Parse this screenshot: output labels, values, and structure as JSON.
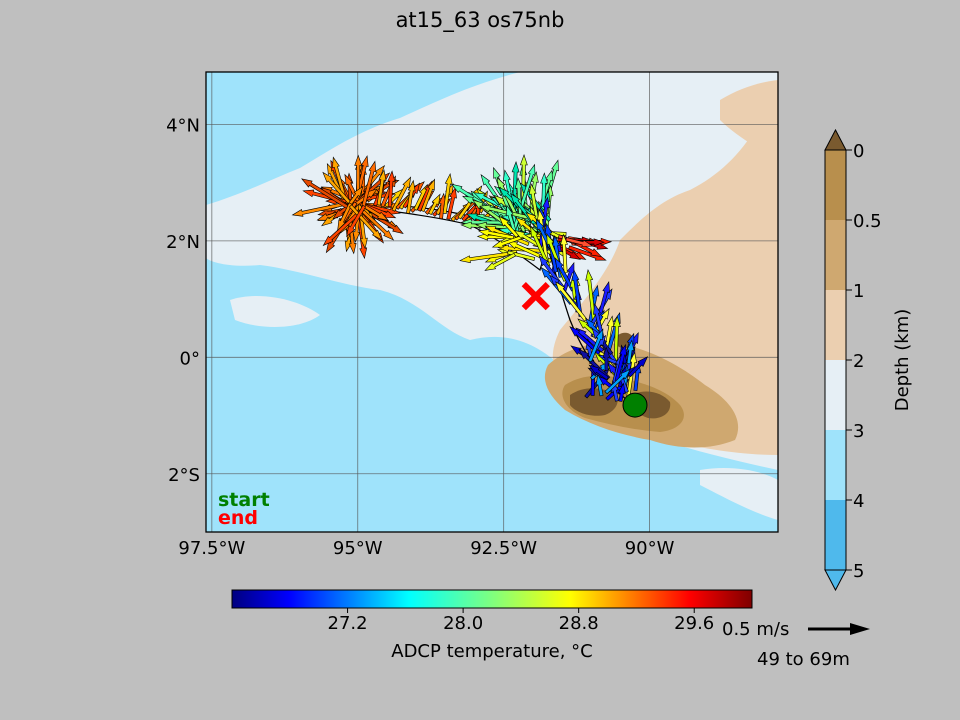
{
  "title": "at15_63 os75nb",
  "map": {
    "lat_ticks": [
      "4°N",
      "2°N",
      "0°",
      "2°S"
    ],
    "lon_ticks": [
      "97.5°W",
      "95°W",
      "92.5°W",
      "90°W"
    ],
    "lat_values": [
      4,
      2,
      0,
      -2
    ],
    "lon_values": [
      -97.5,
      -95,
      -92.5,
      -90
    ],
    "extent": {
      "lon_min": -97.6,
      "lon_max": -87.8,
      "lat_min": -3.0,
      "lat_max": 4.9
    },
    "legend": {
      "start_label": "start",
      "end_label": "end",
      "start_color": "#008000",
      "end_color": "#ff0000"
    },
    "start_point": {
      "lon": -90.25,
      "lat": -0.82
    },
    "end_point": {
      "lon": -91.95,
      "lat": 1.05
    }
  },
  "depth_colorbar": {
    "label": "Depth (km)",
    "ticks": [
      "0",
      "0.5",
      "1",
      "2",
      "3",
      "4",
      "5"
    ],
    "colors": [
      "#b88f4d",
      "#cfa870",
      "#ebcfb0",
      "#e6eff5",
      "#9fe3fb",
      "#4fb9ec"
    ],
    "extend_top_color": "#7a5a2f",
    "extend_bottom_color": "#4fb9ec"
  },
  "temp_colorbar": {
    "label": "ADCP temperature, °C",
    "ticks": [
      "27.2",
      "28.0",
      "28.8",
      "29.6"
    ],
    "tick_values": [
      27.2,
      28.0,
      28.8,
      29.6
    ],
    "range": [
      26.4,
      30.0
    ]
  },
  "scale": {
    "speed_label": "0.5 m/s",
    "depth_range": "49 to 69m"
  }
}
